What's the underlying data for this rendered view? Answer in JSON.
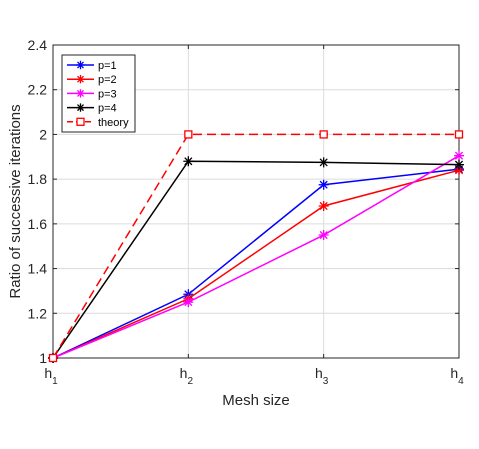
{
  "chart_data": {
    "type": "line",
    "categories": [
      "h1",
      "h2",
      "h3",
      "h4"
    ],
    "x_tick_labels": [
      {
        "base": "h",
        "sub": "1"
      },
      {
        "base": "h",
        "sub": "2"
      },
      {
        "base": "h",
        "sub": "3"
      },
      {
        "base": "h",
        "sub": "4"
      }
    ],
    "xlabel": "Mesh size",
    "ylabel": "Ratio of successive iterations",
    "ylim": [
      1,
      2.4
    ],
    "yticks": [
      1,
      1.2,
      1.4,
      1.6,
      1.8,
      2,
      2.2,
      2.4
    ],
    "ytick_labels": [
      "1",
      "1.2",
      "1.4",
      "1.6",
      "1.8",
      "2",
      "2.2",
      "2.4"
    ],
    "grid": true,
    "legend_position": "top-left",
    "series": [
      {
        "name": "p=1",
        "values": [
          1.0,
          1.285,
          1.775,
          1.845
        ],
        "color": "#0000ff",
        "marker": "asterisk",
        "line": "solid"
      },
      {
        "name": "p=2",
        "values": [
          1.0,
          1.265,
          1.68,
          1.84
        ],
        "color": "#ff0000",
        "marker": "asterisk",
        "line": "solid"
      },
      {
        "name": "p=3",
        "values": [
          1.0,
          1.25,
          1.55,
          1.905
        ],
        "color": "#ff00ff",
        "marker": "asterisk",
        "line": "solid"
      },
      {
        "name": "p=4",
        "values": [
          1.0,
          1.88,
          1.875,
          1.865
        ],
        "color": "#000000",
        "marker": "asterisk",
        "line": "solid"
      },
      {
        "name": "theory",
        "values": [
          1.0,
          2.0,
          2.0,
          2.0
        ],
        "color": "#ff0000",
        "marker": "square",
        "line": "dashed"
      }
    ]
  }
}
